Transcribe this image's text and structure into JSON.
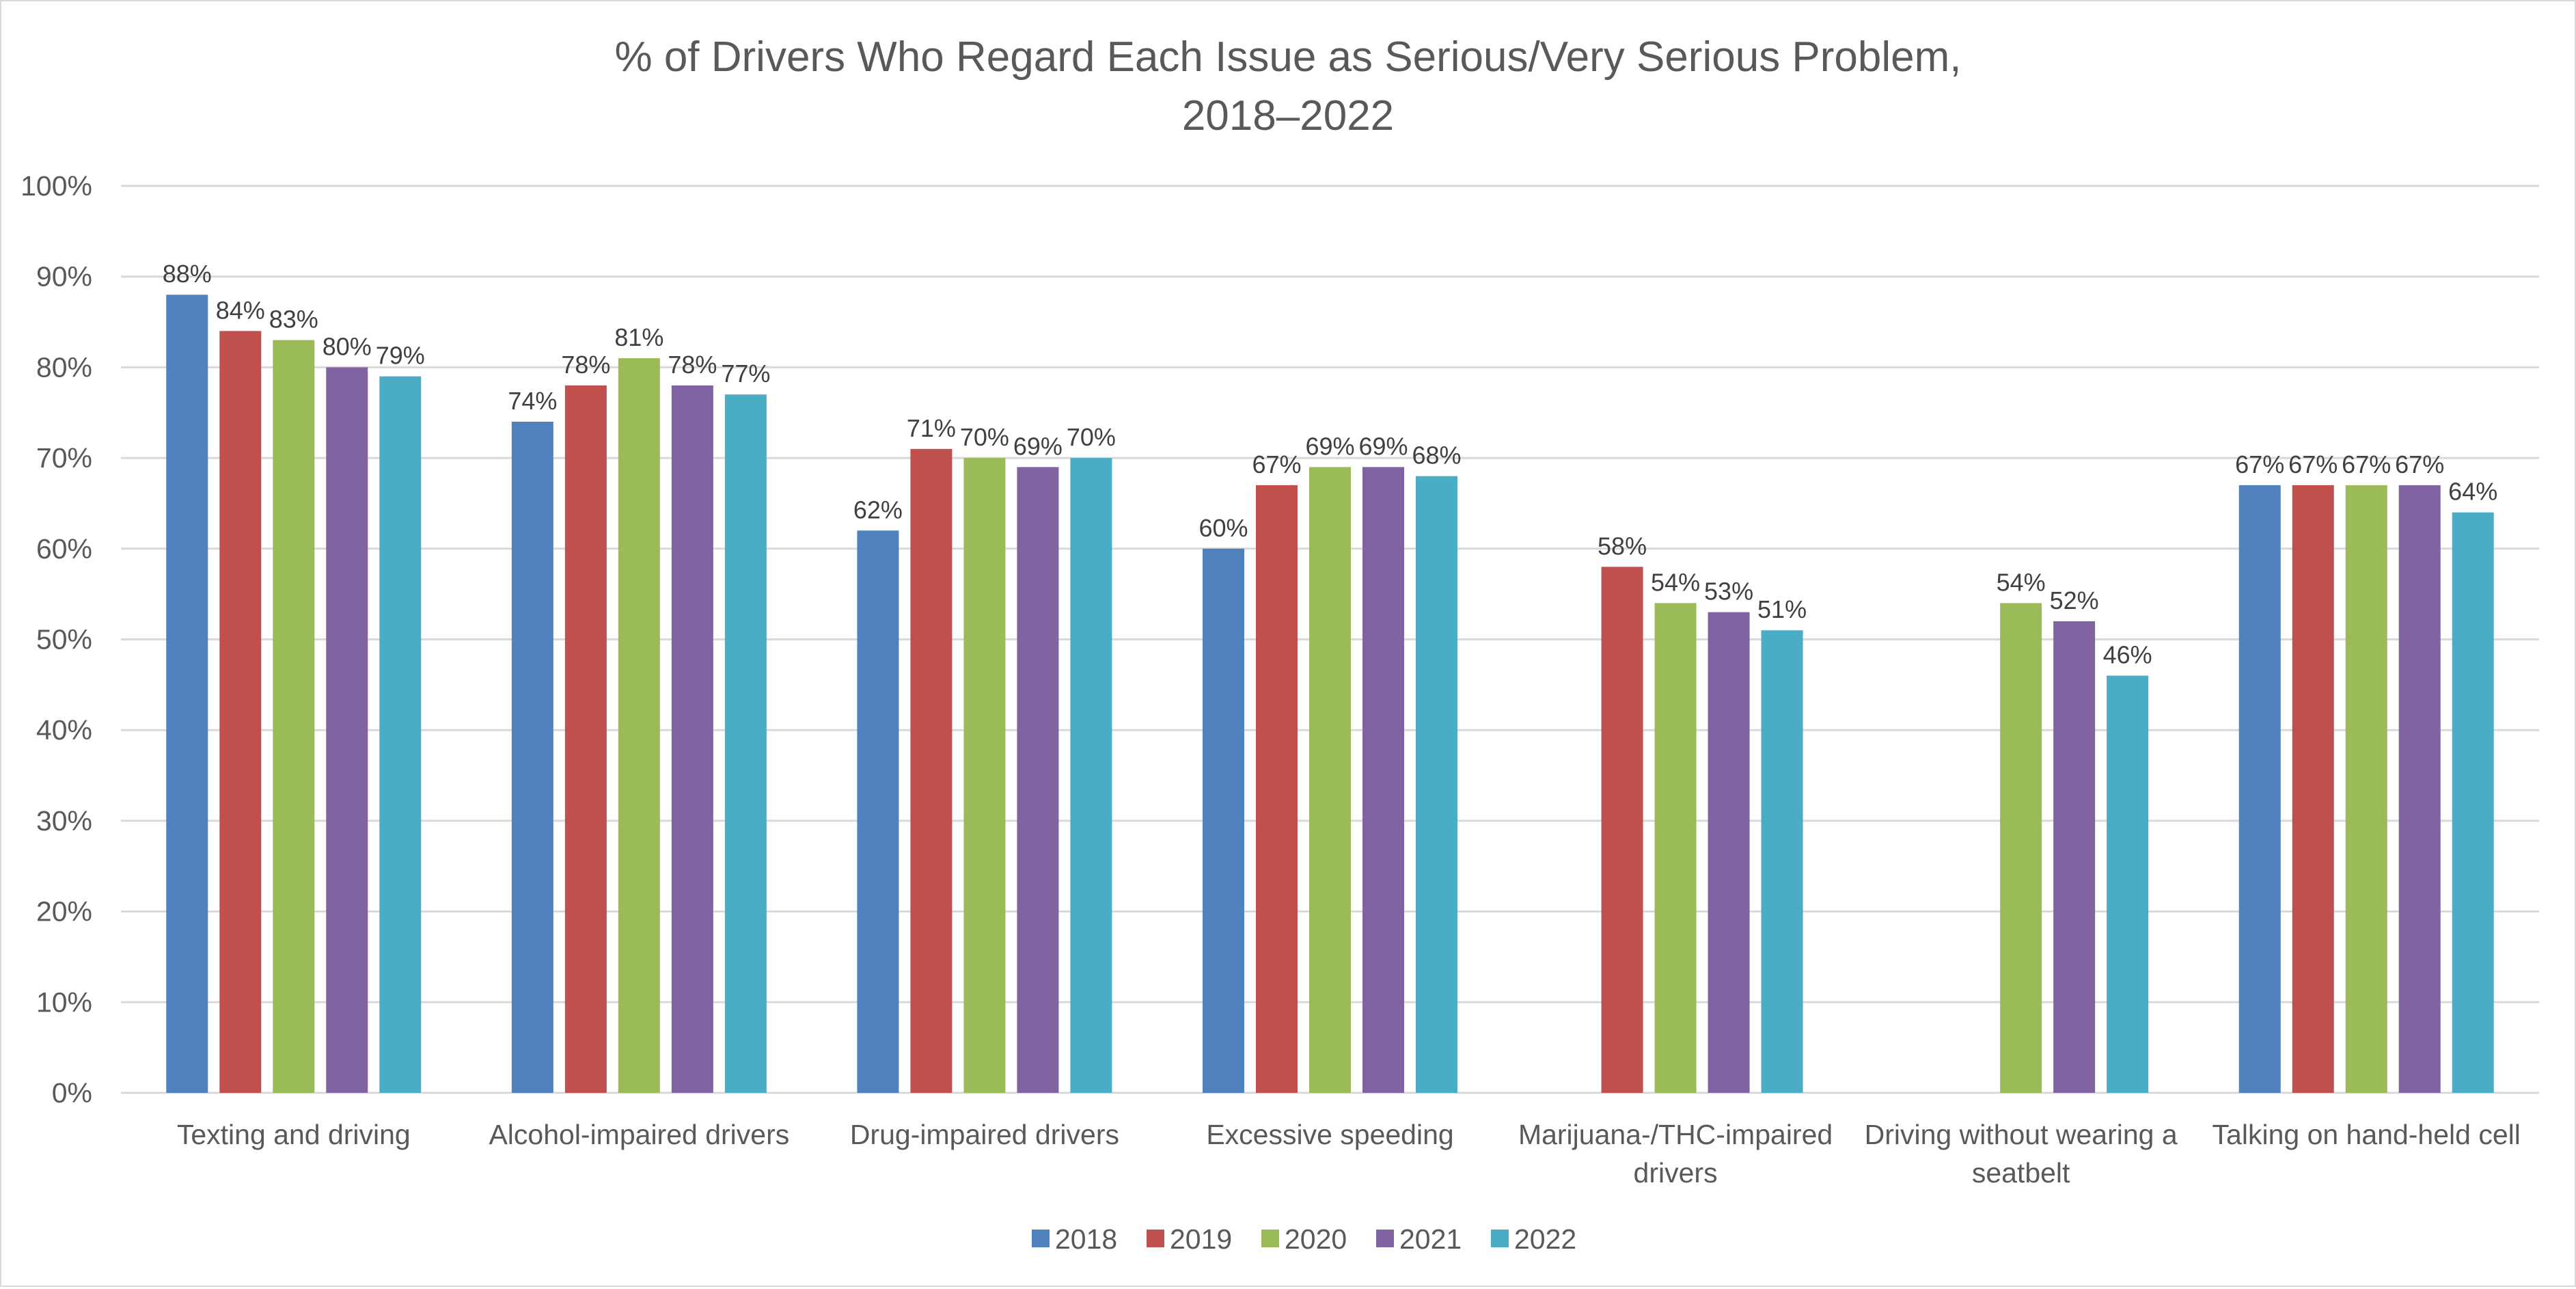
{
  "chart_data": {
    "type": "bar",
    "title": "% of Drivers Who Regard Each Issue as Serious/Very Serious Problem,",
    "subtitle": "2018–2022",
    "xlabel": "",
    "ylabel": "",
    "ylim": [
      0,
      100
    ],
    "ytick_step": 10,
    "ytick_format": "percent",
    "grid": true,
    "legend_position": "bottom",
    "categories": [
      [
        "Texting and driving"
      ],
      [
        "Alcohol-impaired drivers"
      ],
      [
        "Drug-impaired drivers"
      ],
      [
        "Excessive speeding"
      ],
      [
        "Marijuana-/THC-impaired",
        "drivers"
      ],
      [
        "Driving without wearing a",
        "seatbelt"
      ],
      [
        "Talking on hand-held cell"
      ]
    ],
    "series": [
      {
        "name": "2018",
        "color": "#4F81BD",
        "values": [
          88,
          74,
          62,
          60,
          null,
          null,
          67
        ]
      },
      {
        "name": "2019",
        "color": "#C0504D",
        "values": [
          84,
          78,
          71,
          67,
          58,
          null,
          67
        ]
      },
      {
        "name": "2020",
        "color": "#9BBB59",
        "values": [
          83,
          81,
          70,
          69,
          54,
          54,
          67
        ]
      },
      {
        "name": "2021",
        "color": "#8064A2",
        "values": [
          80,
          78,
          69,
          69,
          53,
          52,
          67
        ]
      },
      {
        "name": "2022",
        "color": "#4BACC6",
        "values": [
          79,
          77,
          70,
          68,
          51,
          46,
          64
        ]
      }
    ],
    "data_labels": true,
    "data_label_format": "percent"
  }
}
